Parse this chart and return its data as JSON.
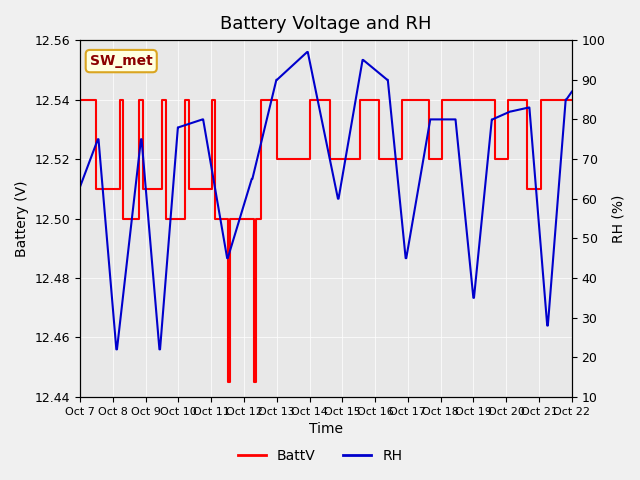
{
  "title": "Battery Voltage and RH",
  "xlabel": "Time",
  "ylabel_left": "Battery (V)",
  "ylabel_right": "RH (%)",
  "annotation": "SW_met",
  "ylim_left": [
    12.44,
    12.56
  ],
  "ylim_right": [
    10,
    100
  ],
  "yticks_left": [
    12.44,
    12.46,
    12.48,
    12.5,
    12.52,
    12.54,
    12.56
  ],
  "yticks_right": [
    10,
    20,
    30,
    40,
    50,
    60,
    70,
    80,
    90,
    100
  ],
  "xtick_labels": [
    "Oct 7",
    "Oct 8",
    "Oct 9",
    "Oct 10",
    "Oct 11",
    "Oct 12",
    "Oct 13",
    "Oct 14",
    "Oct 15",
    "Oct 16",
    "Oct 17",
    "Oct 18",
    "Oct 19",
    "Oct 20",
    "Oct 21",
    "Oct 22"
  ],
  "bg_color": "#e8e8e8",
  "line_color_batt": "#ff0000",
  "line_color_rh": "#0000cc",
  "legend_labels": [
    "BattV",
    "RH"
  ],
  "title_fontsize": 13,
  "label_fontsize": 10,
  "tick_fontsize": 9,
  "annotation_fontsize": 10
}
